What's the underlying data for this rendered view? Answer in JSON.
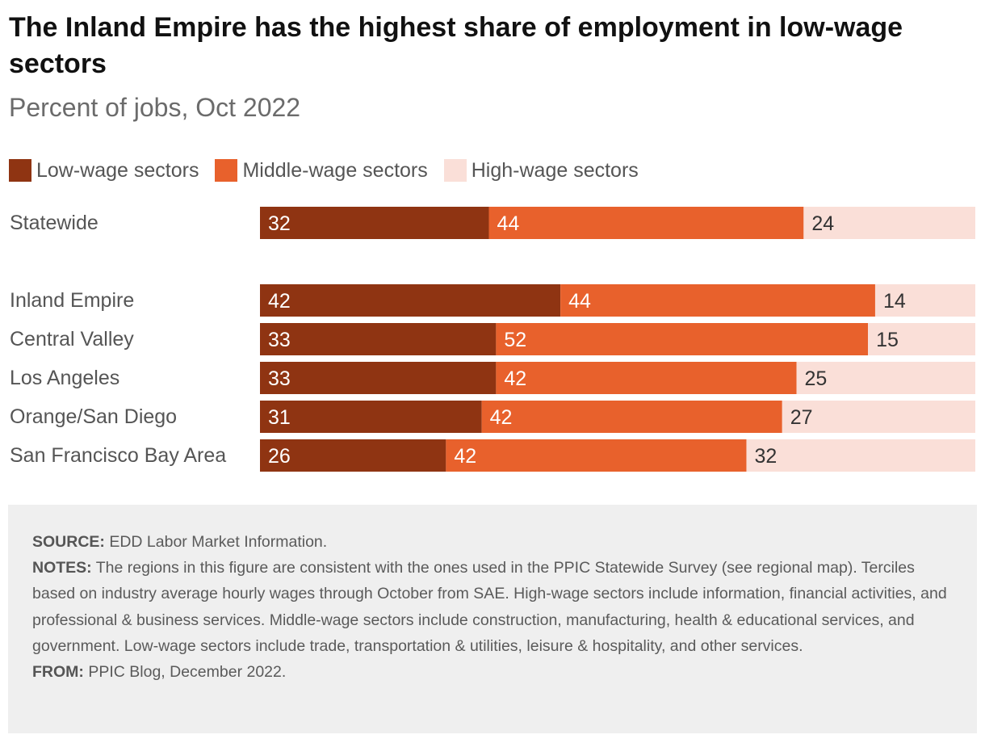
{
  "title": "The Inland Empire has the highest share of employment in low-wage sectors",
  "subtitle": "Percent of jobs, Oct 2022",
  "colors": {
    "low": "#8f3412",
    "middle": "#e8612c",
    "high": "#fadfd8",
    "label_on_dark": "#ffffff",
    "label_on_light": "#333333"
  },
  "legend": [
    {
      "label": "Low-wage sectors",
      "color": "#8f3412"
    },
    {
      "label": "Middle-wage sectors",
      "color": "#e8612c"
    },
    {
      "label": "High-wage sectors",
      "color": "#fadfd8"
    }
  ],
  "chart_data": {
    "type": "bar",
    "orientation": "horizontal",
    "stacked": true,
    "categories": [
      "Statewide",
      "Inland Empire",
      "Central Valley",
      "Los Angeles",
      "Orange/San Diego",
      "San Francisco Bay Area"
    ],
    "series": [
      {
        "name": "Low-wage sectors",
        "values": [
          32,
          42,
          33,
          33,
          31,
          26
        ]
      },
      {
        "name": "Middle-wage sectors",
        "values": [
          44,
          44,
          52,
          42,
          42,
          42
        ]
      },
      {
        "name": "High-wage sectors",
        "values": [
          24,
          14,
          15,
          25,
          27,
          32
        ]
      }
    ],
    "xlim": [
      0,
      100
    ],
    "grid": false,
    "legend_position": "top-left"
  },
  "notes": {
    "source_label": "SOURCE:",
    "source_text": " EDD Labor Market Information.",
    "notes_label": "NOTES:",
    "notes_text": " The regions in this figure are consistent with the ones used in the PPIC Statewide Survey (see regional map). Terciles based on industry average hourly wages through October from SAE. High-wage sectors include information, financial activities, and professional & business services. Middle-wage sectors include construction, manufacturing, health & educational services, and government. Low-wage sectors include trade, transportation & utilities, leisure & hospitality, and other services.",
    "from_label": "FROM:",
    "from_text": " PPIC Blog, December 2022."
  }
}
